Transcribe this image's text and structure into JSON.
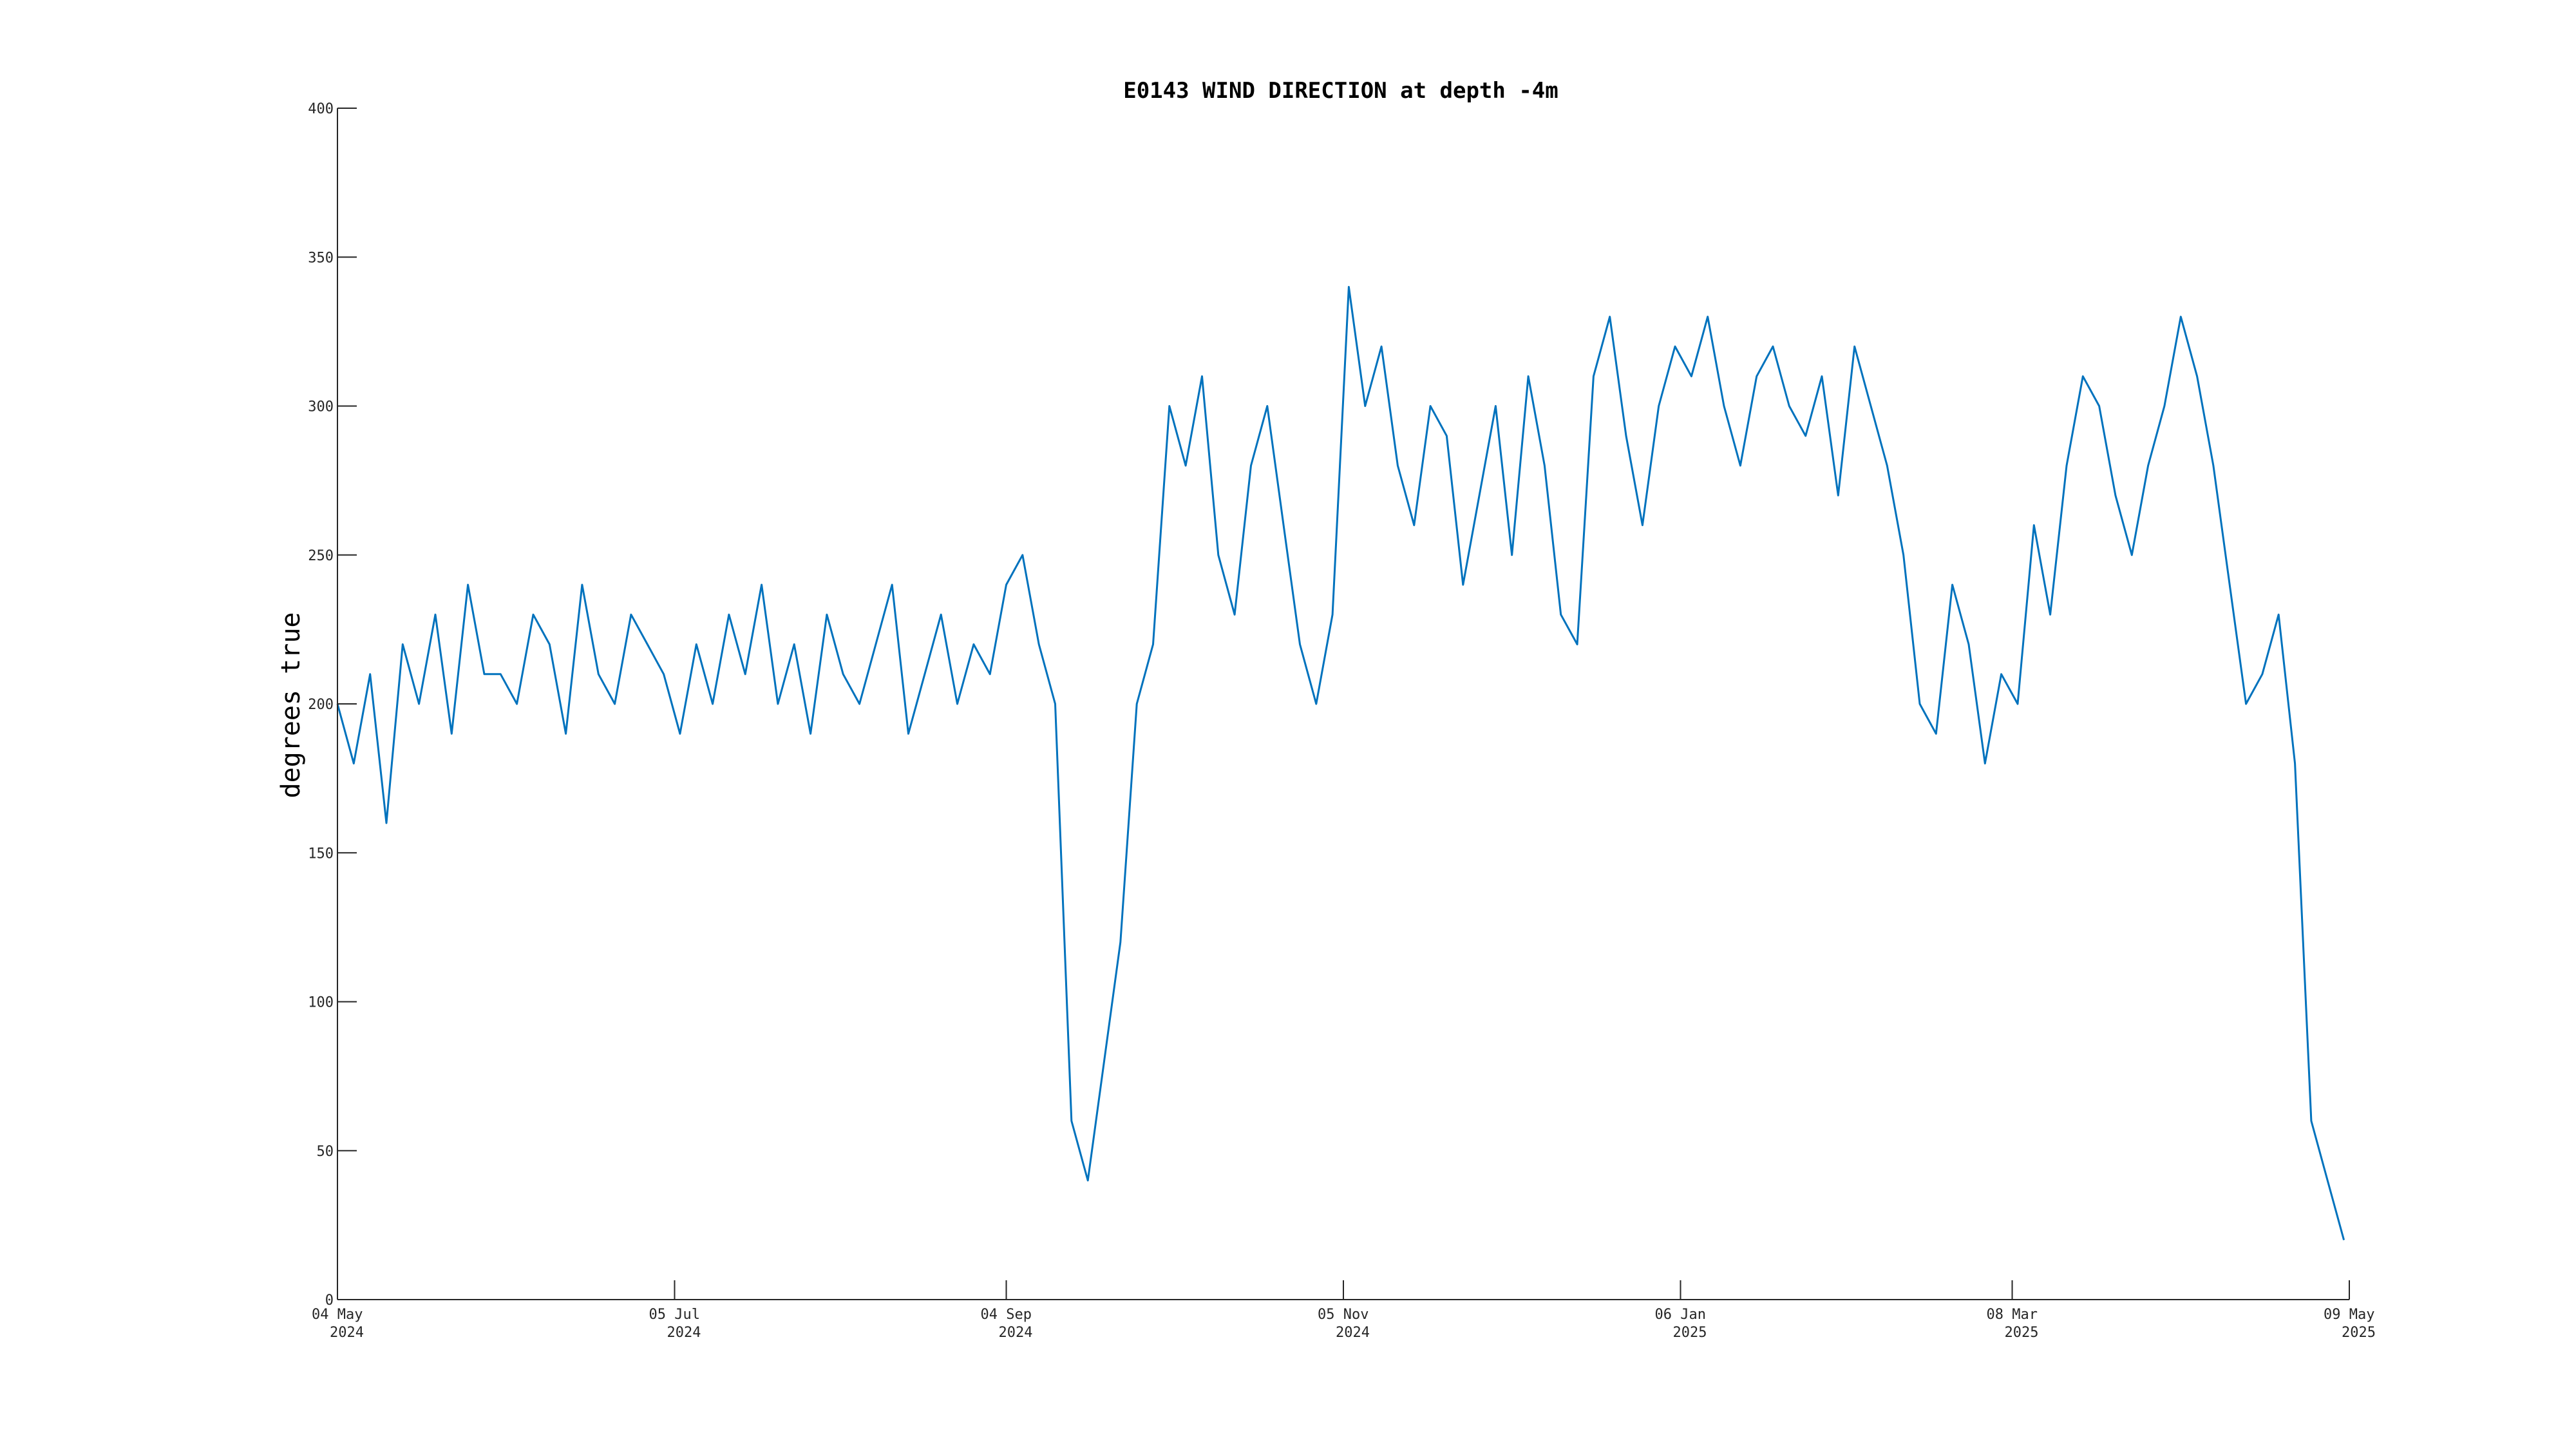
{
  "chart_data": {
    "type": "line",
    "title": "E0143 WIND DIRECTION at depth -4m",
    "xlabel": "",
    "ylabel": "degrees true",
    "ylim": [
      0,
      400
    ],
    "xlim": [
      "2024-05-04",
      "2025-05-09"
    ],
    "y_ticks": [
      0,
      50,
      100,
      150,
      200,
      250,
      300,
      350,
      400
    ],
    "x_ticks": [
      {
        "date": "2024-05-04",
        "label_line1": "04 May",
        "label_line2": "2024"
      },
      {
        "date": "2024-07-05",
        "label_line1": "05 Jul",
        "label_line2": "2024"
      },
      {
        "date": "2024-09-04",
        "label_line1": "04 Sep",
        "label_line2": "2024"
      },
      {
        "date": "2024-11-05",
        "label_line1": "05 Nov",
        "label_line2": "2024"
      },
      {
        "date": "2025-01-06",
        "label_line1": "06 Jan",
        "label_line2": "2025"
      },
      {
        "date": "2025-03-08",
        "label_line1": "08 Mar",
        "label_line2": "2025"
      },
      {
        "date": "2025-05-09",
        "label_line1": "09 May",
        "label_line2": "2025"
      }
    ],
    "grid": false,
    "series": [
      {
        "color": "#0072BD",
        "x": [
          "2024-05-04",
          "2024-05-07",
          "2024-05-10",
          "2024-05-13",
          "2024-05-16",
          "2024-05-19",
          "2024-05-22",
          "2024-05-25",
          "2024-05-28",
          "2024-05-31",
          "2024-06-03",
          "2024-06-06",
          "2024-06-09",
          "2024-06-12",
          "2024-06-15",
          "2024-06-18",
          "2024-06-21",
          "2024-06-24",
          "2024-06-27",
          "2024-06-30",
          "2024-07-03",
          "2024-07-06",
          "2024-07-09",
          "2024-07-12",
          "2024-07-15",
          "2024-07-18",
          "2024-07-21",
          "2024-07-24",
          "2024-07-27",
          "2024-07-30",
          "2024-08-02",
          "2024-08-05",
          "2024-08-08",
          "2024-08-11",
          "2024-08-14",
          "2024-08-17",
          "2024-08-20",
          "2024-08-23",
          "2024-08-26",
          "2024-08-29",
          "2024-09-01",
          "2024-09-04",
          "2024-09-07",
          "2024-09-10",
          "2024-09-13",
          "2024-09-16",
          "2024-09-19",
          "2024-09-22",
          "2024-09-25",
          "2024-09-28",
          "2024-10-01",
          "2024-10-04",
          "2024-10-07",
          "2024-10-10",
          "2024-10-13",
          "2024-10-16",
          "2024-10-19",
          "2024-10-22",
          "2024-10-25",
          "2024-10-28",
          "2024-10-31",
          "2024-11-03",
          "2024-11-06",
          "2024-11-09",
          "2024-11-12",
          "2024-11-15",
          "2024-11-18",
          "2024-11-21",
          "2024-11-24",
          "2024-11-27",
          "2024-11-30",
          "2024-12-03",
          "2024-12-06",
          "2024-12-09",
          "2024-12-12",
          "2024-12-15",
          "2024-12-18",
          "2024-12-21",
          "2024-12-24",
          "2024-12-27",
          "2024-12-30",
          "2025-01-02",
          "2025-01-05",
          "2025-01-08",
          "2025-01-11",
          "2025-01-14",
          "2025-01-17",
          "2025-01-20",
          "2025-01-23",
          "2025-01-26",
          "2025-01-29",
          "2025-02-01",
          "2025-02-04",
          "2025-02-07",
          "2025-02-10",
          "2025-02-13",
          "2025-02-16",
          "2025-02-19",
          "2025-02-22",
          "2025-02-25",
          "2025-02-28",
          "2025-03-03",
          "2025-03-06",
          "2025-03-09",
          "2025-03-12",
          "2025-03-15",
          "2025-03-18",
          "2025-03-21",
          "2025-03-24",
          "2025-03-27",
          "2025-03-30",
          "2025-04-02",
          "2025-04-05",
          "2025-04-08",
          "2025-04-11",
          "2025-04-14",
          "2025-04-17",
          "2025-04-20",
          "2025-04-23",
          "2025-04-26",
          "2025-04-29",
          "2025-05-02",
          "2025-05-05",
          "2025-05-08"
        ],
        "y": [
          200,
          180,
          210,
          160,
          220,
          200,
          230,
          190,
          240,
          210,
          210,
          200,
          230,
          220,
          190,
          240,
          210,
          200,
          230,
          220,
          210,
          190,
          220,
          200,
          230,
          210,
          240,
          200,
          220,
          190,
          230,
          210,
          200,
          220,
          240,
          190,
          210,
          230,
          200,
          220,
          210,
          240,
          250,
          220,
          200,
          60,
          40,
          80,
          120,
          200,
          220,
          300,
          280,
          310,
          250,
          230,
          280,
          300,
          260,
          220,
          200,
          230,
          340,
          300,
          320,
          280,
          260,
          300,
          290,
          240,
          270,
          300,
          250,
          310,
          280,
          230,
          220,
          310,
          330,
          290,
          260,
          300,
          320,
          310,
          330,
          300,
          280,
          310,
          320,
          300,
          290,
          310,
          270,
          320,
          300,
          280,
          250,
          200,
          190,
          240,
          220,
          180,
          210,
          200,
          260,
          230,
          280,
          310,
          300,
          270,
          250,
          280,
          300,
          330,
          310,
          280,
          240,
          200,
          210,
          230,
          180,
          60,
          40,
          20
        ]
      }
    ]
  }
}
